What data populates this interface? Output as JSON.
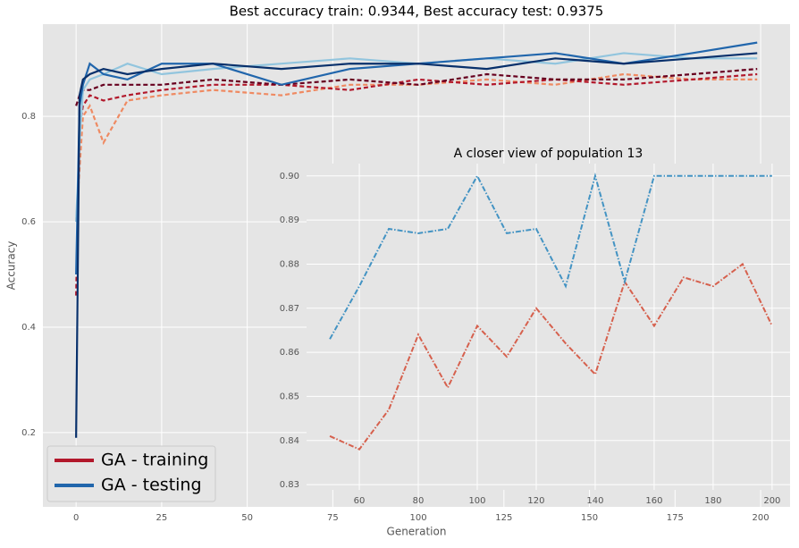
{
  "chart_data": [
    {
      "type": "line",
      "title": "Best accuracy train: 0.9344,    Best accuracy test: 0.9375",
      "x_label": "Generation",
      "y_label": "Accuracy",
      "x": [
        0,
        1,
        2,
        4,
        8,
        15,
        25,
        40,
        60,
        80,
        100,
        120,
        140,
        160,
        180,
        199
      ],
      "series": [
        {
          "color": "#ef8a62",
          "linestyle": "dashed",
          "values": [
            0.6,
            0.7,
            0.8,
            0.82,
            0.75,
            0.83,
            0.84,
            0.85,
            0.84,
            0.86,
            0.86,
            0.87,
            0.86,
            0.88,
            0.87,
            0.87
          ]
        },
        {
          "color": "#b2182b",
          "linestyle": "dashed",
          "values": [
            0.46,
            0.78,
            0.82,
            0.84,
            0.83,
            0.84,
            0.85,
            0.86,
            0.86,
            0.85,
            0.87,
            0.86,
            0.87,
            0.86,
            0.87,
            0.88
          ]
        },
        {
          "color": "#67001f",
          "linestyle": "dashed",
          "values": [
            0.82,
            0.84,
            0.85,
            0.85,
            0.86,
            0.86,
            0.86,
            0.87,
            0.86,
            0.87,
            0.86,
            0.88,
            0.87,
            0.87,
            0.88,
            0.89
          ]
        },
        {
          "color": "#92c5de",
          "linestyle": "solid",
          "values": [
            0.6,
            0.75,
            0.85,
            0.87,
            0.88,
            0.9,
            0.88,
            0.89,
            0.9,
            0.91,
            0.9,
            0.91,
            0.9,
            0.92,
            0.91,
            0.91
          ]
        },
        {
          "color": "#2166ac",
          "linestyle": "solid",
          "values": [
            0.5,
            0.82,
            0.86,
            0.9,
            0.88,
            0.87,
            0.9,
            0.9,
            0.86,
            0.89,
            0.9,
            0.91,
            0.92,
            0.9,
            0.92,
            0.94
          ]
        },
        {
          "color": "#08306b",
          "linestyle": "solid",
          "values": [
            0.19,
            0.84,
            0.87,
            0.88,
            0.89,
            0.88,
            0.89,
            0.9,
            0.89,
            0.9,
            0.9,
            0.89,
            0.91,
            0.9,
            0.91,
            0.92
          ]
        }
      ],
      "legend": [
        {
          "name": "GA - training",
          "color": "#b2182b"
        },
        {
          "name": "GA - testing",
          "color": "#2166ac"
        }
      ],
      "legend_position": "lower left",
      "xlim": [
        -9.7,
        208.6
      ],
      "ylim": [
        0.059,
        0.975
      ],
      "xticks": [
        0,
        25,
        50,
        75,
        100,
        125,
        150,
        175,
        200
      ],
      "yticks": [
        0.2,
        0.4,
        0.6,
        0.8
      ],
      "grid": true
    },
    {
      "type": "line",
      "title": "A closer view of population 13",
      "x": [
        50,
        60,
        70,
        80,
        90,
        100,
        110,
        120,
        130,
        140,
        150,
        160,
        170,
        180,
        190,
        200
      ],
      "series": [
        {
          "color": "#d6604d",
          "linestyle": "dashdot",
          "values": [
            0.841,
            0.838,
            0.847,
            0.864,
            0.852,
            0.866,
            0.859,
            0.87,
            0.862,
            0.855,
            0.876,
            0.866,
            0.877,
            0.875,
            0.88,
            0.866
          ]
        },
        {
          "color": "#4393c3",
          "linestyle": "dashdot",
          "values": [
            0.863,
            0.875,
            0.888,
            0.887,
            0.888,
            0.9,
            0.887,
            0.888,
            0.875,
            0.9,
            0.876,
            0.9,
            0.9,
            0.9,
            0.9,
            0.9
          ]
        }
      ],
      "xlim": [
        42.1,
        206.1
      ],
      "ylim": [
        0.8288,
        0.9028
      ],
      "xticks": [
        60,
        80,
        100,
        120,
        140,
        160,
        180,
        200
      ],
      "yticks": [
        0.83,
        0.84,
        0.85,
        0.86,
        0.87,
        0.88,
        0.89,
        {
          "value": 0.9,
          "label": "0.90"
        }
      ],
      "grid": true
    }
  ]
}
